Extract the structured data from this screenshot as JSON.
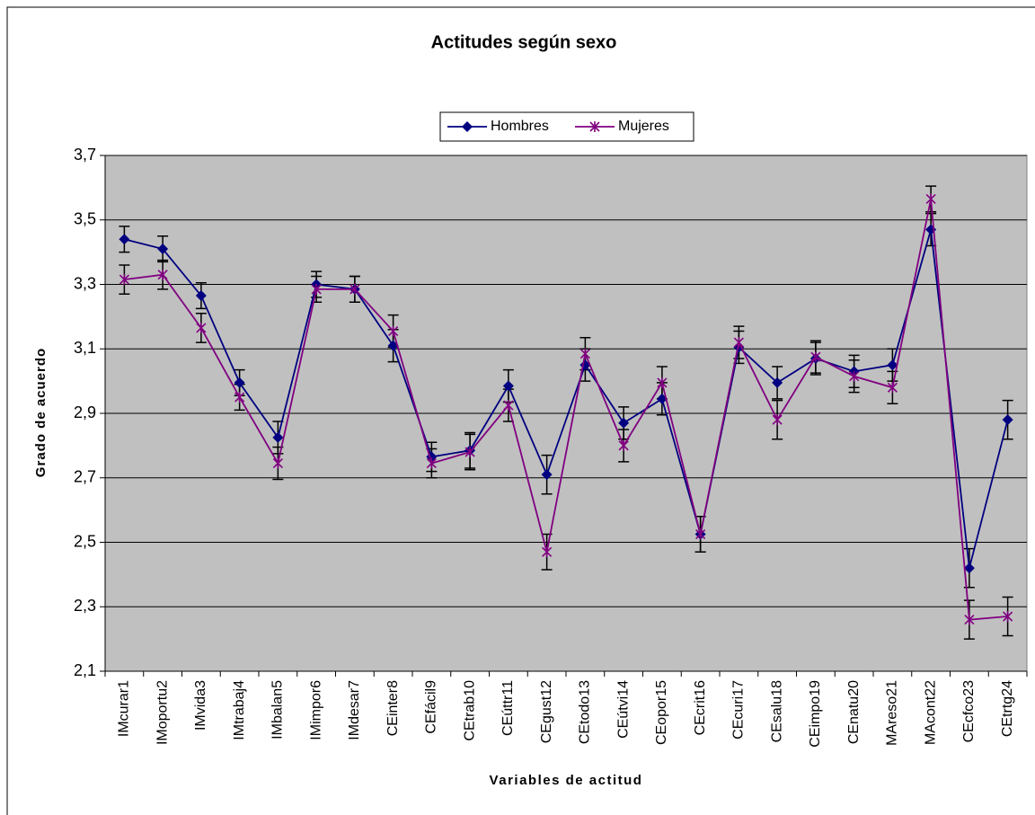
{
  "chart_data": {
    "type": "line",
    "title": "Actitudes según sexo",
    "xlabel": "Variables de actitud",
    "ylabel": "Grado de acuerdo",
    "categories": [
      "IMcurar1",
      "IMoportu2",
      "IMvida3",
      "IMtrabaj4",
      "IMbalan5",
      "IMimpor6",
      "IMdesar7",
      "CEinter8",
      "CEfácil9",
      "CEtrab10",
      "CEúttr11",
      "CEgust12",
      "CEtodo13",
      "CEútvi14",
      "CEopor15",
      "CEcrit16",
      "CEcuri17",
      "CEsalu18",
      "CEimpo19",
      "CEnatu20",
      "MAreso21",
      "MAcont22",
      "CEcfco23",
      "CEtrtg24"
    ],
    "series": [
      {
        "name": "Hombres",
        "color": "#000080",
        "marker": "diamond",
        "values": [
          3.44,
          3.41,
          3.265,
          2.995,
          2.825,
          3.3,
          3.285,
          3.11,
          2.765,
          2.785,
          2.985,
          2.71,
          3.05,
          2.87,
          2.945,
          2.525,
          3.105,
          2.995,
          3.07,
          3.03,
          3.05,
          3.47,
          2.42,
          2.88
        ],
        "errors": [
          0.04,
          0.04,
          0.04,
          0.04,
          0.05,
          0.04,
          0.04,
          0.05,
          0.045,
          0.055,
          0.05,
          0.06,
          0.05,
          0.05,
          0.05,
          0.055,
          0.05,
          0.05,
          0.05,
          0.05,
          0.05,
          0.05,
          0.06,
          0.06
        ]
      },
      {
        "name": "Mujeres",
        "color": "#800080",
        "marker": "star",
        "values": [
          3.315,
          3.33,
          3.165,
          2.95,
          2.745,
          3.285,
          3.285,
          3.155,
          2.745,
          2.78,
          2.925,
          2.47,
          3.085,
          2.8,
          2.995,
          2.525,
          3.12,
          2.88,
          3.075,
          3.015,
          2.98,
          3.565,
          2.26,
          2.27
        ],
        "errors": [
          0.045,
          0.045,
          0.045,
          0.04,
          0.05,
          0.04,
          0.04,
          0.05,
          0.045,
          0.055,
          0.05,
          0.055,
          0.05,
          0.05,
          0.05,
          0.055,
          0.05,
          0.06,
          0.05,
          0.05,
          0.05,
          0.04,
          0.06,
          0.06
        ]
      }
    ],
    "ylim": [
      2.1,
      3.7
    ],
    "yticks": [
      {
        "value": 2.1,
        "label": "2,1"
      },
      {
        "value": 2.3,
        "label": "2,3"
      },
      {
        "value": 2.5,
        "label": "2,5"
      },
      {
        "value": 2.7,
        "label": "2,7"
      },
      {
        "value": 2.9,
        "label": "2,9"
      },
      {
        "value": 3.1,
        "label": "3,1"
      },
      {
        "value": 3.3,
        "label": "3,3"
      },
      {
        "value": 3.5,
        "label": "3,5"
      },
      {
        "value": 3.7,
        "label": "3,7"
      }
    ],
    "grid": true,
    "legend": "top"
  }
}
